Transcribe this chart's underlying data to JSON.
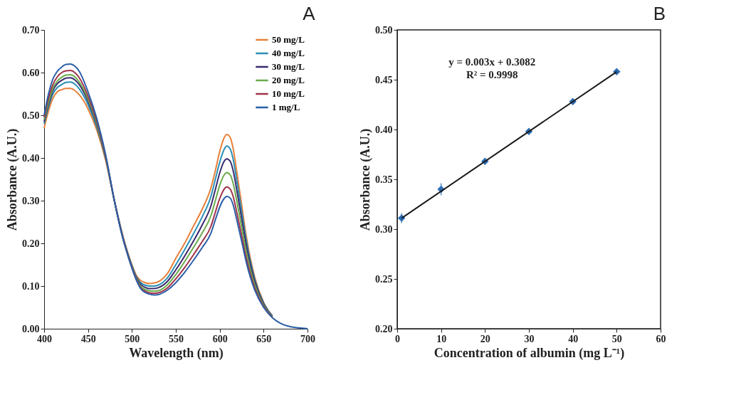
{
  "chart_data": [
    {
      "type": "line",
      "title": "A",
      "xlabel": "Wavelength (nm)",
      "ylabel": "Absorbance (A.U.)",
      "x": [
        400,
        405,
        410,
        415,
        420,
        425,
        430,
        435,
        440,
        450,
        460,
        470,
        480,
        490,
        495,
        500,
        505,
        510,
        515,
        520,
        525,
        530,
        540,
        550,
        560,
        570,
        580,
        590,
        595,
        600,
        605,
        608,
        612,
        615,
        620,
        625,
        630,
        640,
        650,
        660,
        670,
        680,
        690,
        700
      ],
      "series": [
        {
          "name": "50 mg/L",
          "color": "#e8803a",
          "values": [
            0.47,
            0.51,
            0.54,
            0.555,
            0.56,
            0.563,
            0.563,
            0.558,
            0.548,
            0.515,
            0.465,
            0.395,
            0.3,
            0.215,
            0.18,
            0.15,
            0.125,
            0.113,
            0.108,
            0.106,
            0.107,
            0.11,
            0.128,
            0.165,
            0.2,
            0.24,
            0.28,
            0.33,
            0.37,
            0.415,
            0.447,
            0.455,
            0.448,
            0.425,
            0.36,
            0.29,
            0.22,
            0.12,
            0.062,
            0.03,
            null,
            null,
            null,
            null
          ]
        },
        {
          "name": "40 mg/L",
          "color": "#2a8fb5",
          "values": [
            0.48,
            0.52,
            0.55,
            0.565,
            0.572,
            0.577,
            0.578,
            0.573,
            0.562,
            0.525,
            0.472,
            0.4,
            0.3,
            0.213,
            0.178,
            0.148,
            0.122,
            0.108,
            0.102,
            0.1,
            0.1,
            0.102,
            0.118,
            0.15,
            0.185,
            0.222,
            0.262,
            0.31,
            0.35,
            0.39,
            0.42,
            0.428,
            0.421,
            0.4,
            0.34,
            0.275,
            0.21,
            0.115,
            0.06,
            0.03,
            null,
            null,
            null,
            null
          ]
        },
        {
          "name": "30 mg/L",
          "color": "#3b2a6e",
          "values": [
            0.485,
            0.525,
            0.558,
            0.574,
            0.582,
            0.587,
            0.588,
            0.583,
            0.572,
            0.533,
            0.478,
            0.402,
            0.3,
            0.212,
            0.177,
            0.146,
            0.12,
            0.104,
            0.097,
            0.094,
            0.094,
            0.096,
            0.11,
            0.138,
            0.17,
            0.205,
            0.243,
            0.288,
            0.326,
            0.365,
            0.392,
            0.398,
            0.392,
            0.373,
            0.318,
            0.258,
            0.198,
            0.11,
            0.058,
            0.029,
            null,
            null,
            null,
            null
          ]
        },
        {
          "name": "20 mg/L",
          "color": "#6aaa4a",
          "values": [
            0.49,
            0.53,
            0.563,
            0.58,
            0.589,
            0.594,
            0.595,
            0.59,
            0.578,
            0.538,
            0.481,
            0.403,
            0.3,
            0.211,
            0.176,
            0.145,
            0.118,
            0.1,
            0.092,
            0.089,
            0.088,
            0.089,
            0.102,
            0.127,
            0.157,
            0.19,
            0.224,
            0.265,
            0.3,
            0.336,
            0.36,
            0.366,
            0.36,
            0.343,
            0.293,
            0.238,
            0.183,
            0.102,
            0.055,
            0.028,
            null,
            null,
            null,
            null
          ]
        },
        {
          "name": "10 mg/L",
          "color": "#a0324a",
          "values": [
            0.495,
            0.54,
            0.572,
            0.59,
            0.6,
            0.604,
            0.605,
            0.6,
            0.588,
            0.545,
            0.486,
            0.405,
            0.3,
            0.21,
            0.175,
            0.143,
            0.116,
            0.096,
            0.088,
            0.084,
            0.083,
            0.084,
            0.095,
            0.117,
            0.143,
            0.173,
            0.204,
            0.24,
            0.273,
            0.305,
            0.327,
            0.332,
            0.327,
            0.312,
            0.267,
            0.218,
            0.168,
            0.095,
            0.052,
            0.027,
            null,
            null,
            null,
            null
          ]
        },
        {
          "name": "1 mg/L",
          "color": "#2a5ea8",
          "values": [
            0.5,
            0.55,
            0.585,
            0.603,
            0.613,
            0.619,
            0.62,
            0.615,
            0.603,
            0.555,
            0.492,
            0.408,
            0.3,
            0.209,
            0.174,
            0.142,
            0.114,
            0.094,
            0.085,
            0.081,
            0.079,
            0.08,
            0.09,
            0.108,
            0.132,
            0.16,
            0.19,
            0.224,
            0.255,
            0.285,
            0.305,
            0.31,
            0.306,
            0.292,
            0.25,
            0.205,
            0.158,
            0.09,
            0.05,
            0.026,
            0.012,
            0.005,
            0.002,
            0.0
          ]
        }
      ],
      "xlim": [
        400,
        700
      ],
      "xticks": [
        400,
        450,
        500,
        550,
        600,
        650,
        700
      ],
      "ylim": [
        0,
        0.7
      ],
      "yticks": [
        {
          "value": 0,
          "label": "0.00"
        },
        {
          "value": 0.1,
          "label": "0.10"
        },
        {
          "value": 0.2,
          "label": "0.20"
        },
        {
          "value": 0.3,
          "label": "0.30"
        },
        {
          "value": 0.4,
          "label": "0.40"
        },
        {
          "value": 0.5,
          "label": "0.50"
        },
        {
          "value": 0.6,
          "label": "0.60"
        },
        {
          "value": 0.7,
          "label": "0.70"
        }
      ],
      "grid": false,
      "legend": "top right"
    },
    {
      "type": "scatter",
      "title": "B",
      "xlabel": "Concentration of albumin (mg L⁻¹)",
      "ylabel": "Absorbance (A.U.)",
      "series": [
        {
          "type": "scatter",
          "color": "#2e6db4",
          "marker": "diamond",
          "x": [
            1,
            10,
            20,
            30,
            40,
            50
          ],
          "values": [
            0.311,
            0.34,
            0.368,
            0.398,
            0.428,
            0.458
          ],
          "errors": [
            0.005,
            0.006,
            0.002,
            0.002,
            0.002,
            0.001
          ]
        },
        {
          "type": "line",
          "color": "#1a1a1a",
          "marker": "none",
          "x": [
            1,
            50
          ],
          "values": [
            0.311,
            0.458
          ]
        }
      ],
      "xlim": [
        0,
        60
      ],
      "xticks": [
        0,
        10,
        20,
        30,
        40,
        50,
        60
      ],
      "ylim": [
        0.2,
        0.5
      ],
      "yticks": [
        {
          "value": 0.2,
          "label": "0.20"
        },
        {
          "value": 0.25,
          "label": "0.25"
        },
        {
          "value": 0.3,
          "label": "0.30"
        },
        {
          "value": 0.35,
          "label": "0.35"
        },
        {
          "value": 0.4,
          "label": "0.40"
        },
        {
          "value": 0.45,
          "label": "0.45"
        },
        {
          "value": 0.5,
          "label": "0.50"
        }
      ],
      "grid": false,
      "annotations": [
        "y = 0.003x + 0.3082",
        "R² = 0.9998"
      ]
    }
  ]
}
